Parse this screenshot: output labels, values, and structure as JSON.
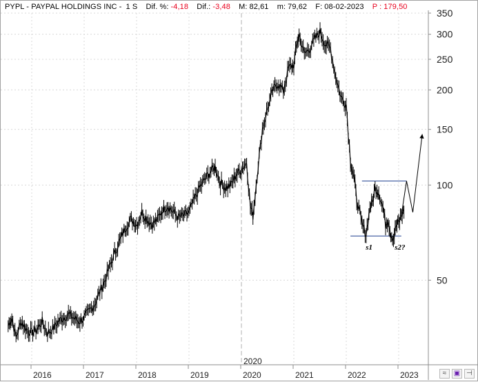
{
  "header": {
    "title": "PYPL - PAYPAL HOLDINGS INC -",
    "period": "1 S",
    "dif_pct_label": "Dif. %:",
    "dif_pct_value": "-4,18",
    "dif_label": "Dif.:",
    "dif_value": "-3,48",
    "max_label": "M:",
    "max_value": "82,61",
    "min_label": "m:",
    "min_value": "79,62",
    "date_label": "F:",
    "date_value": "08-02-2023",
    "price_label": "P :",
    "price_value": "179,50"
  },
  "toolbar": {
    "icons": [
      "chart-wave-icon",
      "save-icon",
      "dock-icon"
    ]
  },
  "colors": {
    "price": "#000000",
    "grid": "#d8d8d8",
    "annotation_lines": "#1f3f8f",
    "negative": "#e8001c",
    "axis_text": "#202020"
  },
  "chart_data": {
    "type": "line",
    "title": "PYPL - PAYPAL HOLDINGS INC - 1 S",
    "scale": "log",
    "ylim": [
      27,
      350
    ],
    "y_ticks": [
      50,
      100,
      150,
      200,
      250,
      300,
      350
    ],
    "x_ticks": [
      "2016",
      "2017",
      "2018",
      "2019",
      "2020",
      "2021",
      "2022",
      "2023"
    ],
    "x_marker_label": "2020",
    "grid": true,
    "series": [
      {
        "values_x": [
          2015.55,
          2015.62,
          2015.7,
          2015.8,
          2015.9,
          2016.0,
          2016.1,
          2016.2,
          2016.3,
          2016.4,
          2016.5,
          2016.6,
          2016.7,
          2016.8,
          2016.9,
          2017.0,
          2017.1,
          2017.2,
          2017.3,
          2017.4,
          2017.5,
          2017.6,
          2017.7,
          2017.8,
          2017.9,
          2018.0,
          2018.1,
          2018.2,
          2018.3,
          2018.4,
          2018.5,
          2018.6,
          2018.7,
          2018.8,
          2018.9,
          2019.0,
          2019.1,
          2019.2,
          2019.3,
          2019.4,
          2019.5,
          2019.6,
          2019.7,
          2019.8,
          2019.9,
          2020.0,
          2020.1,
          2020.17,
          2020.22,
          2020.3,
          2020.4,
          2020.5,
          2020.6,
          2020.7,
          2020.8,
          2020.9,
          2021.0,
          2021.05,
          2021.1,
          2021.2,
          2021.3,
          2021.4,
          2021.5,
          2021.6,
          2021.7,
          2021.8,
          2021.9,
          2022.0,
          2022.08,
          2022.15,
          2022.2,
          2022.3,
          2022.38,
          2022.45,
          2022.5,
          2022.55,
          2022.62,
          2022.7,
          2022.75,
          2022.8,
          2022.85,
          2022.9,
          2022.95,
          2023.0,
          2023.05,
          2023.1
        ],
        "values": [
          36,
          38,
          33,
          37,
          35,
          34,
          35,
          37,
          34,
          35,
          37,
          38,
          39,
          38,
          37,
          38,
          40,
          42,
          46,
          50,
          56,
          62,
          68,
          74,
          78,
          75,
          82,
          78,
          75,
          78,
          84,
          86,
          82,
          79,
          80,
          82,
          90,
          98,
          104,
          110,
          114,
          102,
          98,
          100,
          108,
          112,
          118,
          86,
          80,
          108,
          150,
          175,
          200,
          210,
          198,
          235,
          240,
          275,
          300,
          260,
          270,
          290,
          305,
          280,
          270,
          220,
          190,
          180,
          120,
          105,
          90,
          75,
          70,
          85,
          88,
          98,
          95,
          85,
          75,
          78,
          70,
          68,
          74,
          76,
          80,
          83
        ],
        "name": ""
      }
    ],
    "annotations": {
      "resistance_level": 103,
      "support_level": 69,
      "labels": [
        "s1",
        "s2?"
      ],
      "s1_x": 2022.45,
      "s2_x": 2022.95,
      "projection": [
        [
          2023.05,
          80
        ],
        [
          2023.15,
          103
        ],
        [
          2023.27,
          82
        ],
        [
          2023.45,
          145
        ]
      ]
    }
  }
}
